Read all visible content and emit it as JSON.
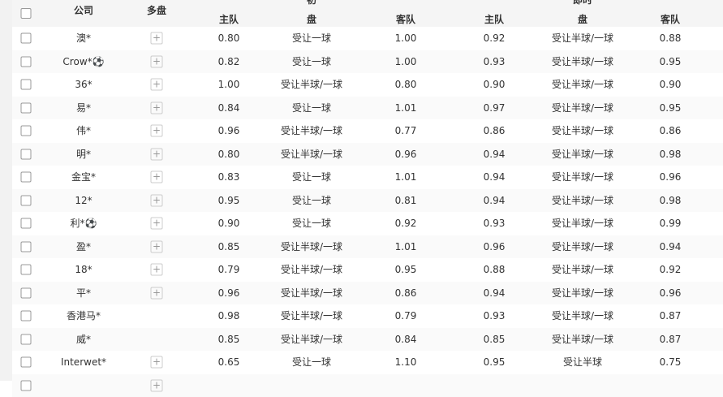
{
  "header": {
    "company": "公司",
    "multi": "多盘",
    "group_initial": "初",
    "group_live": "即时",
    "home": "主队",
    "handicap": "盘",
    "away": "客队"
  },
  "rows": [
    {
      "company": "澳*",
      "multi": true,
      "ih": "0.80",
      "ip": "受让一球",
      "ia": "1.00",
      "lh": "0.92",
      "lp": "受让半球/一球",
      "la": "0.88"
    },
    {
      "company": "Crow*⚽",
      "multi": true,
      "ih": "0.82",
      "ip": "受让一球",
      "ia": "1.00",
      "lh": "0.93",
      "lp": "受让半球/一球",
      "la": "0.95"
    },
    {
      "company": "36*",
      "multi": true,
      "ih": "1.00",
      "ip": "受让半球/一球",
      "ia": "0.80",
      "lh": "0.90",
      "lp": "受让半球/一球",
      "la": "0.90"
    },
    {
      "company": "易*",
      "multi": true,
      "ih": "0.84",
      "ip": "受让一球",
      "ia": "1.01",
      "lh": "0.97",
      "lp": "受让半球/一球",
      "la": "0.95"
    },
    {
      "company": "伟*",
      "multi": true,
      "ih": "0.96",
      "ip": "受让半球/一球",
      "ia": "0.77",
      "lh": "0.86",
      "lp": "受让半球/一球",
      "la": "0.86"
    },
    {
      "company": "明*",
      "multi": true,
      "ih": "0.80",
      "ip": "受让半球/一球",
      "ia": "0.96",
      "lh": "0.94",
      "lp": "受让半球/一球",
      "la": "0.98"
    },
    {
      "company": "金宝*",
      "multi": true,
      "ih": "0.83",
      "ip": "受让一球",
      "ia": "1.01",
      "lh": "0.94",
      "lp": "受让半球/一球",
      "la": "0.96"
    },
    {
      "company": "12*",
      "multi": true,
      "ih": "0.95",
      "ip": "受让一球",
      "ia": "0.81",
      "lh": "0.94",
      "lp": "受让半球/一球",
      "la": "0.98"
    },
    {
      "company": "利*⚽",
      "multi": true,
      "ih": "0.90",
      "ip": "受让一球",
      "ia": "0.92",
      "lh": "0.93",
      "lp": "受让半球/一球",
      "la": "0.99"
    },
    {
      "company": "盈*",
      "multi": true,
      "ih": "0.85",
      "ip": "受让半球/一球",
      "ia": "1.01",
      "lh": "0.96",
      "lp": "受让半球/一球",
      "la": "0.94"
    },
    {
      "company": "18*",
      "multi": true,
      "ih": "0.79",
      "ip": "受让半球/一球",
      "ia": "0.95",
      "lh": "0.88",
      "lp": "受让半球/一球",
      "la": "0.92"
    },
    {
      "company": "平*",
      "multi": true,
      "ih": "0.96",
      "ip": "受让半球/一球",
      "ia": "0.86",
      "lh": "0.94",
      "lp": "受让半球/一球",
      "la": "0.96"
    },
    {
      "company": "香港马*",
      "multi": false,
      "ih": "0.98",
      "ip": "受让半球/一球",
      "ia": "0.79",
      "lh": "0.93",
      "lp": "受让半球/一球",
      "la": "0.87"
    },
    {
      "company": "威*",
      "multi": false,
      "ih": "0.85",
      "ip": "受让半球/一球",
      "ia": "0.84",
      "lh": "0.85",
      "lp": "受让半球/一球",
      "la": "0.87"
    },
    {
      "company": "Interwet*",
      "multi": true,
      "ih": "0.65",
      "ip": "受让一球",
      "ia": "1.10",
      "lh": "0.95",
      "lp": "受让半球",
      "la": "0.75"
    },
    {
      "company": "",
      "multi": true,
      "ih": "",
      "ip": "",
      "ia": "",
      "lh": "",
      "lp": "",
      "la": ""
    }
  ]
}
